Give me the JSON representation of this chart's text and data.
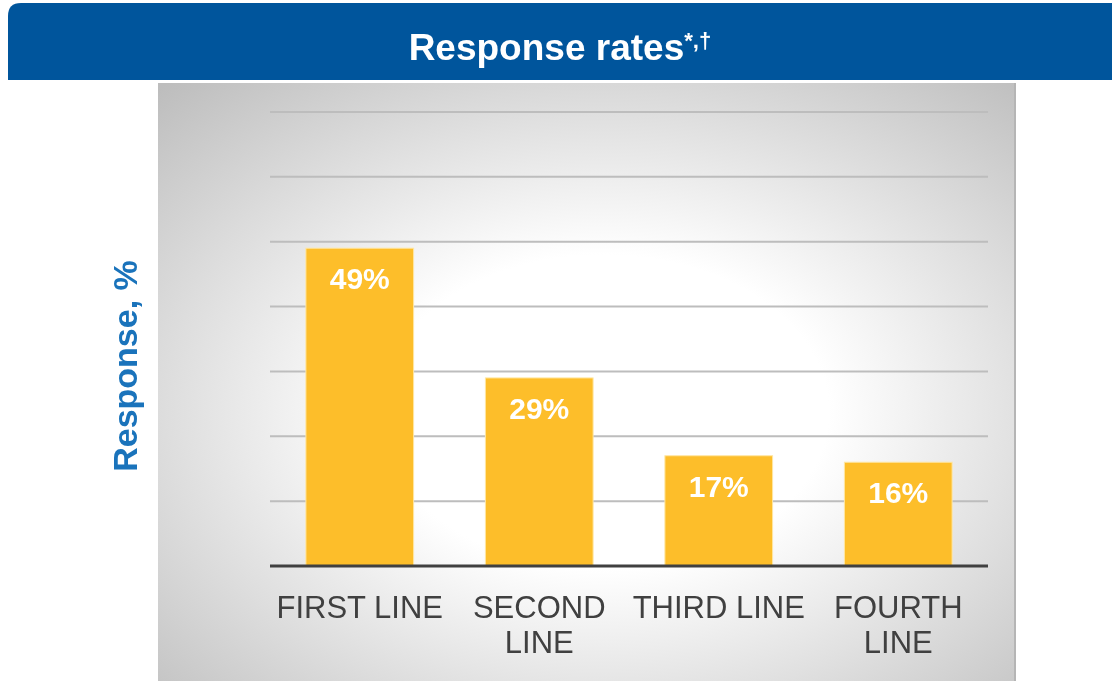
{
  "chart_data": {
    "type": "bar",
    "title": "Response rates$^{*,†}$",
    "ylabel": "Response, %",
    "categories": [
      "FIRST LINE",
      "SECOND LINE",
      "THIRD LINE",
      "FOURTH LINE"
    ],
    "values": [
      49,
      29,
      17,
      16
    ],
    "color": "#fdbe2a",
    "value_labels": [
      "49%",
      "29%",
      "17%",
      "16%"
    ],
    "ylim": [
      0,
      70
    ],
    "yticks": [
      {
        "value": 0,
        "label": null
      },
      {
        "value": 10,
        "label": null
      },
      {
        "value": 20,
        "label": null
      },
      {
        "value": 30,
        "label": null
      },
      {
        "value": 40,
        "label": null
      },
      {
        "value": 50,
        "label": null
      },
      {
        "value": 60,
        "label": null
      },
      {
        "value": 70,
        "label": null
      }
    ],
    "grid": "y",
    "tick_labels": "x"
  }
}
